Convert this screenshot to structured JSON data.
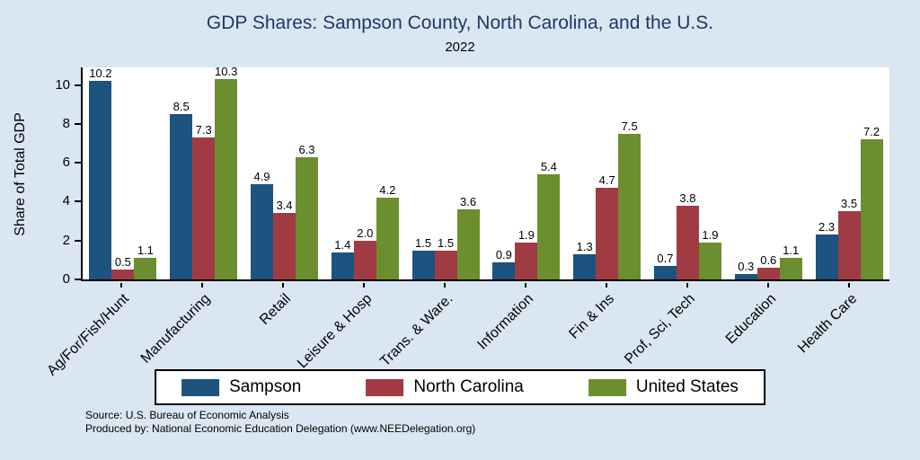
{
  "chart_data": {
    "type": "bar",
    "title": "GDP Shares: Sampson County, North Carolina, and the U.S.",
    "subtitle": "2022",
    "ylabel": "Share of Total GDP",
    "xlabel": "",
    "ylim": [
      0,
      11
    ],
    "yticks": [
      0,
      2,
      4,
      6,
      8,
      10
    ],
    "grid": false,
    "legend_position": "bottom",
    "categories": [
      "Ag/For/Fish/Hunt",
      "Manufacturing",
      "Retail",
      "Leisure & Hosp",
      "Trans. & Ware.",
      "Information",
      "Fin & Ins",
      "Prof, Sci, Tech",
      "Education",
      "Health Care"
    ],
    "series": [
      {
        "name": "Sampson",
        "color": "#1d537f",
        "values": [
          10.2,
          8.5,
          4.9,
          1.4,
          1.5,
          0.9,
          1.3,
          0.7,
          0.3,
          2.3
        ]
      },
      {
        "name": "North Carolina",
        "color": "#a03b44",
        "values": [
          0.5,
          7.3,
          3.4,
          2.0,
          1.5,
          1.9,
          4.7,
          3.8,
          0.6,
          3.5
        ]
      },
      {
        "name": "United States",
        "color": "#6b8e2f",
        "values": [
          1.1,
          10.3,
          6.3,
          4.2,
          3.6,
          5.4,
          7.5,
          1.9,
          1.1,
          7.2
        ]
      }
    ]
  },
  "colors": {
    "background": "#dae7f2",
    "plot_background": "#ffffff",
    "title": "#1f3864",
    "axis": "#000000"
  },
  "source": {
    "line1": "Source: U.S. Bureau of Economic Analysis",
    "line2": "Produced by: National Economic Education Delegation (www.NEEDelegation.org)"
  }
}
